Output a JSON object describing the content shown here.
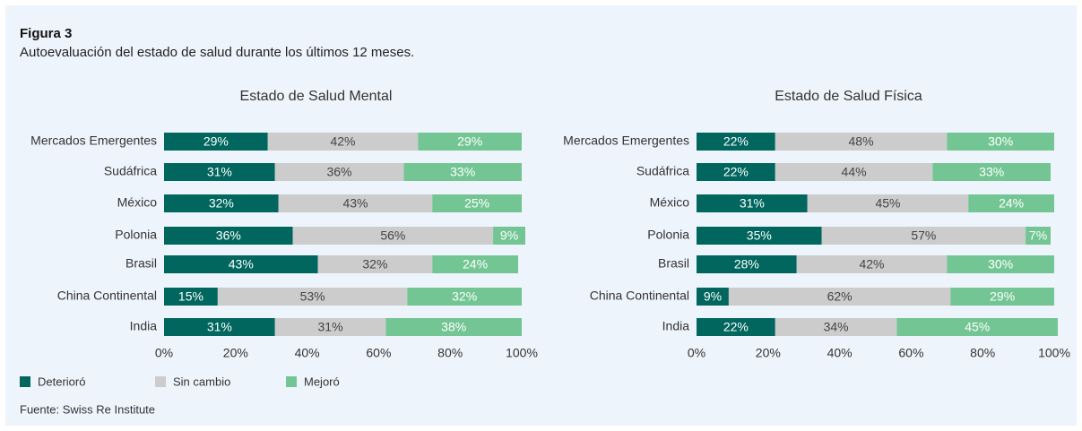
{
  "figure": "Figura 3",
  "subtitle": "Autoevaluación del estado de salud durante los últimos 12 meses.",
  "source": "Fuente: Swiss Re Institute",
  "chart_data": [
    {
      "type": "stacked-barh",
      "title": "Estado de Salud Mental",
      "categories": [
        "Mercados Emergentes",
        "Sudáfrica",
        "México",
        "Polonia",
        "Brasil",
        "China Continental",
        "India"
      ],
      "series": [
        {
          "name": "Deterioró",
          "color": "#00665e",
          "values": [
            29,
            31,
            32,
            36,
            43,
            15,
            31
          ],
          "value_labels": [
            "29%",
            "31%",
            "32%",
            "36%",
            "43%",
            "15%",
            "31%"
          ]
        },
        {
          "name": "Sin cambio",
          "color": "#cccccc",
          "values": [
            42,
            36,
            43,
            56,
            32,
            53,
            31
          ],
          "value_labels": [
            "42%",
            "36%",
            "43%",
            "56%",
            "32%",
            "53%",
            "31%"
          ]
        },
        {
          "name": "Mejoró",
          "color": "#73c693",
          "values": [
            29,
            33,
            25,
            9,
            24,
            32,
            38
          ],
          "value_labels": [
            "29%",
            "33%",
            "25%",
            "9%",
            "24%",
            "32%",
            "38%"
          ]
        }
      ],
      "xlim": [
        0,
        100
      ],
      "xticks": [
        {
          "value": 0,
          "label": "0%"
        },
        {
          "value": 20,
          "label": "20%"
        },
        {
          "value": 40,
          "label": "40%"
        },
        {
          "value": 60,
          "label": "60%"
        },
        {
          "value": 80,
          "label": "80%"
        },
        {
          "value": 100,
          "label": "100%"
        }
      ]
    },
    {
      "type": "stacked-barh",
      "title": "Estado de Salud Física",
      "categories": [
        "Mercados Emergentes",
        "Sudáfrica",
        "México",
        "Polonia",
        "Brasil",
        "China Continental",
        "India"
      ],
      "series": [
        {
          "color": "#00665e",
          "values": [
            22,
            22,
            31,
            35,
            28,
            9,
            22
          ],
          "value_labels": [
            "22%",
            "22%",
            "31%",
            "35%",
            "28%",
            "9%",
            "22%"
          ]
        },
        {
          "color": "#cccccc",
          "values": [
            48,
            44,
            45,
            57,
            42,
            62,
            34
          ],
          "value_labels": [
            "48%",
            "44%",
            "45%",
            "57%",
            "42%",
            "62%",
            "34%"
          ]
        },
        {
          "color": "#73c693",
          "values": [
            30,
            33,
            24,
            7,
            30,
            29,
            45
          ],
          "value_labels": [
            "30%",
            "33%",
            "24%",
            "7%",
            "30%",
            "29%",
            "45%"
          ]
        }
      ],
      "xlim": [
        0,
        100
      ],
      "xticks": [
        {
          "value": 0,
          "label": "0%"
        },
        {
          "value": 20,
          "label": "20%"
        },
        {
          "value": 40,
          "label": "40%"
        },
        {
          "value": 60,
          "label": "60%"
        },
        {
          "value": 80,
          "label": "80%"
        },
        {
          "value": 100,
          "label": "100%"
        }
      ]
    }
  ]
}
